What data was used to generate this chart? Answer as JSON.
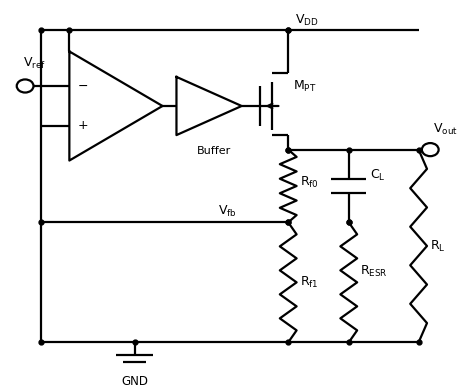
{
  "background_color": "#ffffff",
  "line_color": "#000000",
  "line_width": 1.6,
  "fig_width": 4.74,
  "fig_height": 3.91,
  "dpi": 100
}
